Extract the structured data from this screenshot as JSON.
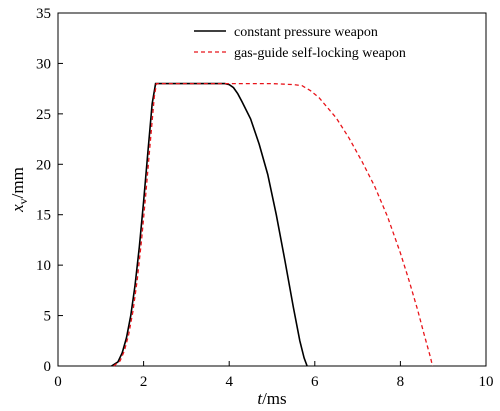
{
  "chart_data": {
    "type": "line",
    "xlabel_main": "t",
    "xlabel_unit": "/ms",
    "ylabel_main": "x",
    "ylabel_sub": "v",
    "ylabel_unit": "/mm",
    "xlim": [
      0,
      10
    ],
    "ylim": [
      0,
      35
    ],
    "x_ticks": [
      0,
      2,
      4,
      6,
      8,
      10
    ],
    "y_ticks": [
      0,
      5,
      10,
      15,
      20,
      25,
      30,
      35
    ],
    "grid": false,
    "legend_position": "top-right",
    "series": [
      {
        "name": "constant pressure weapon",
        "color": "#000000",
        "dash": "solid",
        "x": [
          1.25,
          1.4,
          1.5,
          1.6,
          1.7,
          1.8,
          1.9,
          2.0,
          2.1,
          2.2,
          2.28,
          2.5,
          3.0,
          3.5,
          3.9,
          4.0,
          4.1,
          4.2,
          4.3,
          4.5,
          4.7,
          4.9,
          5.1,
          5.3,
          5.5,
          5.65,
          5.75,
          5.82
        ],
        "y": [
          0,
          0.4,
          1.3,
          2.8,
          5.0,
          8.0,
          11.8,
          16.3,
          21.2,
          26.0,
          28.0,
          28.0,
          28.0,
          28.0,
          28.0,
          27.9,
          27.6,
          27.0,
          26.2,
          24.5,
          22.0,
          19.0,
          15.0,
          10.5,
          5.8,
          2.5,
          0.8,
          0
        ]
      },
      {
        "name": "gas-guide self-locking weapon",
        "color": "#e8141a",
        "dash": "4,3",
        "x": [
          1.3,
          1.45,
          1.55,
          1.65,
          1.75,
          1.85,
          1.95,
          2.05,
          2.15,
          2.25,
          2.3,
          2.5,
          4.0,
          5.0,
          5.5,
          5.7,
          5.9,
          6.1,
          6.3,
          6.5,
          6.8,
          7.1,
          7.4,
          7.7,
          8.0,
          8.2,
          8.4,
          8.55,
          8.7,
          8.75
        ],
        "y": [
          0,
          0.5,
          1.5,
          3.1,
          5.4,
          8.5,
          12.4,
          17.0,
          21.9,
          26.7,
          28.0,
          28.0,
          28.0,
          28.0,
          27.9,
          27.8,
          27.3,
          26.6,
          25.6,
          24.6,
          22.6,
          20.3,
          17.8,
          14.8,
          11.2,
          8.5,
          5.6,
          3.2,
          0.9,
          0
        ]
      }
    ]
  }
}
